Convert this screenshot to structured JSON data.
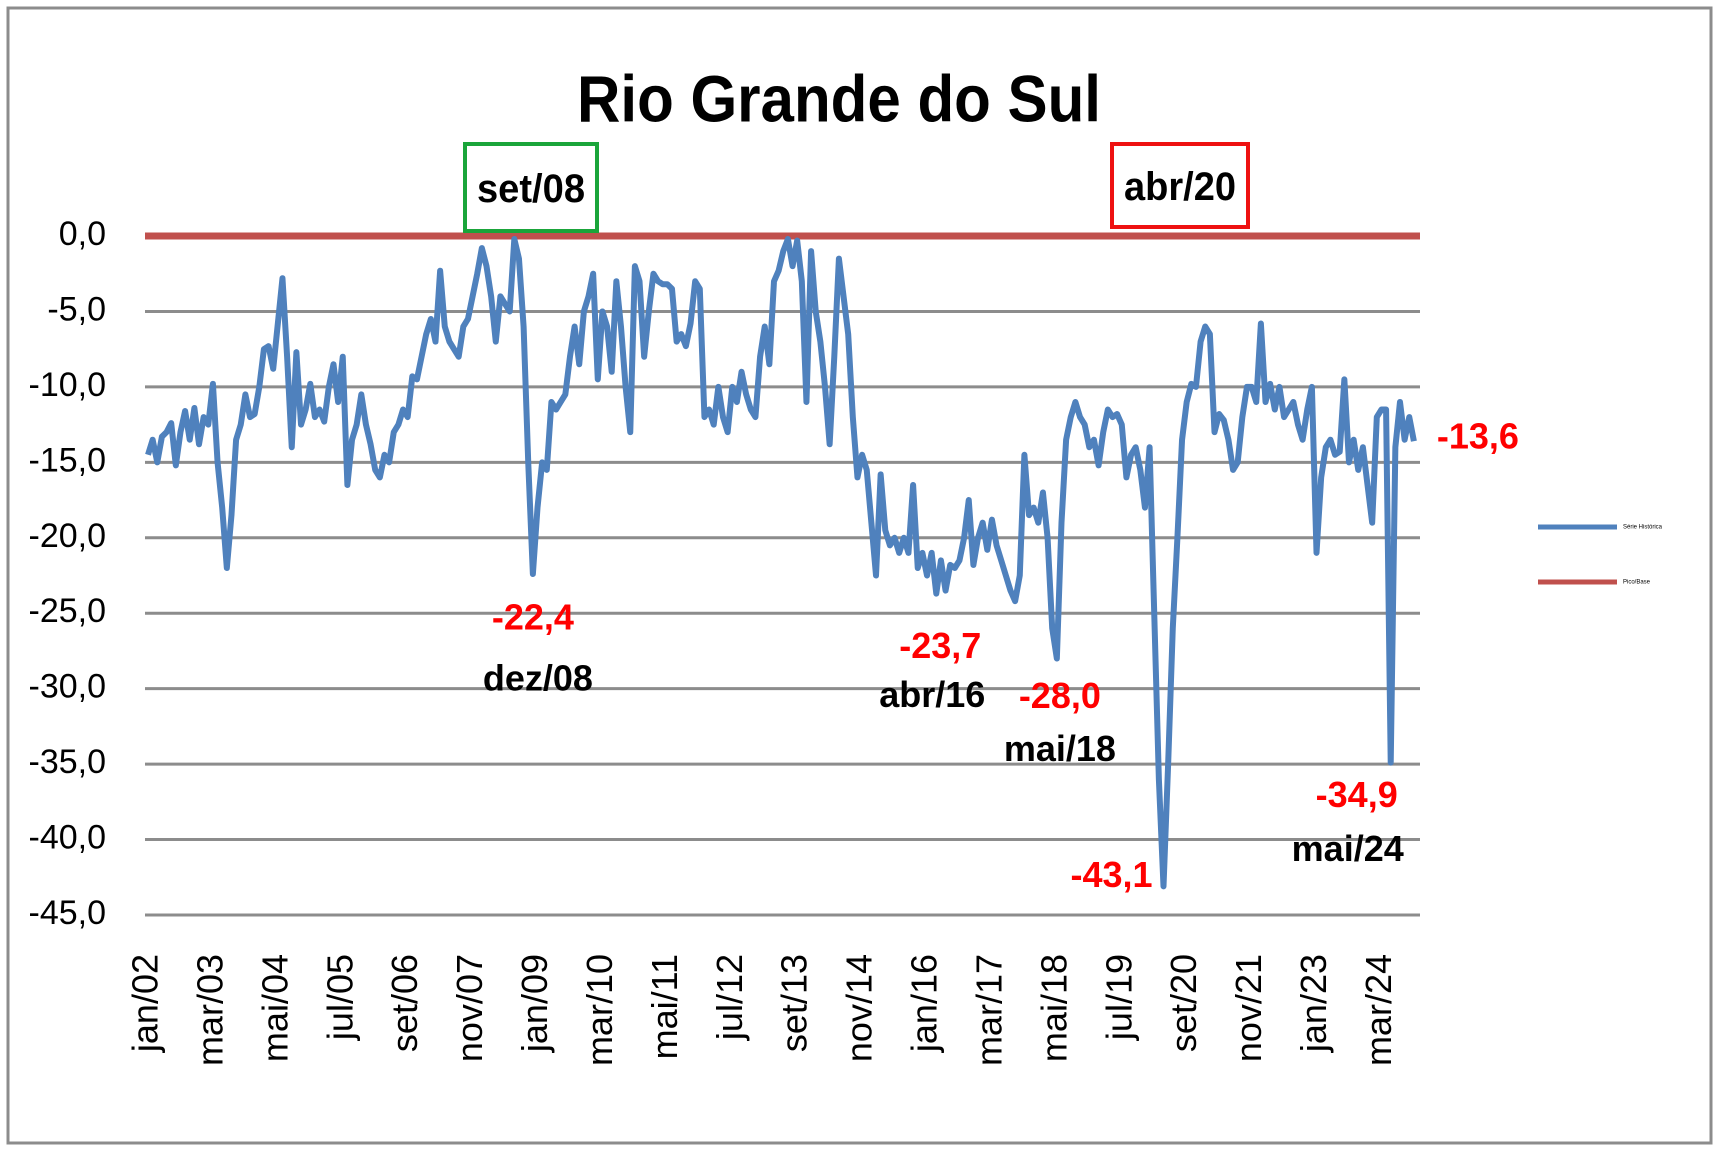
{
  "chart_data": {
    "type": "line",
    "title": "Rio Grande do Sul",
    "categories": [
      "jan/02",
      null,
      null,
      null,
      null,
      null,
      null,
      null,
      null,
      null,
      null,
      null,
      null,
      null,
      "mar/03",
      null,
      null,
      null,
      null,
      null,
      null,
      null,
      null,
      null,
      null,
      null,
      null,
      null,
      "mai/04",
      null,
      null,
      null,
      null,
      null,
      null,
      null,
      null,
      null,
      null,
      null,
      null,
      null,
      "jul/05",
      null,
      null,
      null,
      null,
      null,
      null,
      null,
      null,
      null,
      null,
      null,
      null,
      null,
      "set/06",
      null,
      null,
      null,
      null,
      null,
      null,
      null,
      null,
      null,
      null,
      null,
      null,
      null,
      "nov/07",
      null,
      null,
      null,
      null,
      null,
      null,
      null,
      null,
      null,
      null,
      null,
      null,
      null,
      "jan/09",
      null,
      null,
      null,
      null,
      null,
      null,
      null,
      null,
      null,
      null,
      null,
      null,
      null,
      "mar/10",
      null,
      null,
      null,
      null,
      null,
      null,
      null,
      null,
      null,
      null,
      null,
      null,
      null,
      "mai/11",
      null,
      null,
      null,
      null,
      null,
      null,
      null,
      null,
      null,
      null,
      null,
      null,
      null,
      "jul/12",
      null,
      null,
      null,
      null,
      null,
      null,
      null,
      null,
      null,
      null,
      null,
      null,
      null,
      "set/13",
      null,
      null,
      null,
      null,
      null,
      null,
      null,
      null,
      null,
      null,
      null,
      null,
      null,
      "nov/14",
      null,
      null,
      null,
      null,
      null,
      null,
      null,
      null,
      null,
      null,
      null,
      null,
      null,
      "jan/16",
      null,
      null,
      null,
      null,
      null,
      null,
      null,
      null,
      null,
      null,
      null,
      null,
      null,
      "mar/17",
      null,
      null,
      null,
      null,
      null,
      null,
      null,
      null,
      null,
      null,
      null,
      null,
      null,
      "mai/18",
      null,
      null,
      null,
      null,
      null,
      null,
      null,
      null,
      null,
      null,
      null,
      null,
      null,
      "jul/19",
      null,
      null,
      null,
      null,
      null,
      null,
      null,
      null,
      null,
      null,
      null,
      null,
      null,
      "set/20",
      null,
      null,
      null,
      null,
      null,
      null,
      null,
      null,
      null,
      null,
      null,
      null,
      null,
      "nov/21",
      null,
      null,
      null,
      null,
      null,
      null,
      null,
      null,
      null,
      null,
      null,
      null,
      null,
      "jan/23",
      null,
      null,
      null,
      null,
      null,
      null,
      null,
      null,
      null,
      null,
      null,
      null,
      null,
      "mar/24",
      null,
      null,
      null,
      null,
      null,
      null,
      null
    ],
    "series": [
      {
        "name": "Série Histórica",
        "color": "#4f81bd",
        "values": [
          -14.5,
          -13.5,
          -15,
          -13.3,
          -13,
          -12.4,
          -15.2,
          -13,
          -11.6,
          -13.5,
          -11.4,
          -13.8,
          -12,
          -12.5,
          -9.8,
          -15,
          -18,
          -22,
          -18.5,
          -13.5,
          -12.5,
          -10.5,
          -12,
          -11.8,
          -10,
          -7.5,
          -7.3,
          -8.8,
          -5.8,
          -2.8,
          -8,
          -14,
          -7.7,
          -12.5,
          -11.5,
          -9.8,
          -12,
          -11.5,
          -12.3,
          -10,
          -8.5,
          -11,
          -8,
          -16.5,
          -13.5,
          -12.5,
          -10.5,
          -12.5,
          -13.8,
          -15.5,
          -16,
          -14.5,
          -15,
          -13,
          -12.5,
          -11.5,
          -12,
          -9.3,
          -9.5,
          -8,
          -6.5,
          -5.5,
          -7,
          -2.3,
          -6,
          -7,
          -7.5,
          -8,
          -6,
          -5.5,
          -4,
          -2.5,
          -0.8,
          -2,
          -4,
          -7,
          -4,
          -4.5,
          -5,
          -0.2,
          -1.5,
          -6,
          -15,
          -22.4,
          -18,
          -15,
          -15.5,
          -11,
          -11.5,
          -11,
          -10.5,
          -8,
          -6,
          -8.5,
          -5,
          -4,
          -2.5,
          -9.5,
          -5,
          -6,
          -9,
          -3,
          -6,
          -10,
          -13,
          -2,
          -3,
          -8,
          -5,
          -2.5,
          -3,
          -3.2,
          -3.2,
          -3.5,
          -7,
          -6.5,
          -7.3,
          -5.8,
          -3,
          -3.5,
          -12,
          -11.5,
          -12.5,
          -10,
          -12,
          -13,
          -10,
          -11,
          -9,
          -10.5,
          -11.5,
          -12,
          -8,
          -6,
          -8.5,
          -3,
          -2.3,
          -1,
          -0.2,
          -2,
          -0.3,
          -3,
          -11,
          -1,
          -5,
          -7,
          -10,
          -13.8,
          -8,
          -1.5,
          -4,
          -6.5,
          -12,
          -16,
          -14.5,
          -15.5,
          -19,
          -22.5,
          -15.8,
          -19.5,
          -20.5,
          -20,
          -21,
          -20,
          -21,
          -16.5,
          -22,
          -21,
          -22.5,
          -21,
          -23.7,
          -21.5,
          -23.5,
          -21.8,
          -22,
          -21.5,
          -20,
          -17.5,
          -21.8,
          -20,
          -19,
          -20.8,
          -18.8,
          -20.5,
          -21.5,
          -22.5,
          -23.5,
          -24.2,
          -22.5,
          -14.5,
          -18.5,
          -18,
          -19,
          -17,
          -20,
          -26,
          -28,
          -19,
          -13.5,
          -12,
          -11,
          -12,
          -12.5,
          -14,
          -13.5,
          -15.2,
          -13,
          -11.5,
          -12,
          -11.8,
          -12.5,
          -16,
          -14.5,
          -14,
          -15.5,
          -18,
          -14,
          -25,
          -36,
          -43.1,
          -35,
          -26,
          -20,
          -13.5,
          -11,
          -9.8,
          -10,
          -7,
          -6,
          -6.5,
          -13,
          -11.8,
          -12.2,
          -13.5,
          -15.5,
          -15,
          -12,
          -10,
          -10,
          -11,
          -5.8,
          -11,
          -9.8,
          -11.5,
          -10,
          -12,
          -11.5,
          -11,
          -12.5,
          -13.5,
          -11.5,
          -10,
          -21,
          -16,
          -14,
          -13.5,
          -14.5,
          -14.3,
          -9.5,
          -15,
          -13.5,
          -15.5,
          -14,
          -16.5,
          -19,
          -12,
          -11.5,
          -11.5,
          -34.9,
          -14,
          -11,
          -13.5,
          -12,
          -13.6
        ]
      }
    ],
    "reference_lines": [
      {
        "name": "Pico/Base",
        "color": "#c0504d",
        "value": 0
      }
    ],
    "ylim": [
      -45,
      0
    ],
    "yticks": [
      {
        "value": 0,
        "label": "0,0"
      },
      {
        "value": -5,
        "label": "-5,0"
      },
      {
        "value": -10,
        "label": "-10,0"
      },
      {
        "value": -15,
        "label": "-15,0"
      },
      {
        "value": -20,
        "label": "-20,0"
      },
      {
        "value": -25,
        "label": "-25,0"
      },
      {
        "value": -30,
        "label": "-30,0"
      },
      {
        "value": -35,
        "label": "-35,0"
      },
      {
        "value": -40,
        "label": "-40,0"
      },
      {
        "value": -45,
        "label": "-45,0"
      }
    ],
    "grid": true,
    "legend": "right",
    "boxed_labels": [
      {
        "label": "set/08",
        "color": "#1aa53a"
      },
      {
        "label": "abr/20",
        "color": "#ee1111"
      }
    ],
    "annotations": [
      {
        "value": -22.4,
        "label": "-22,4",
        "date": "dez/08"
      },
      {
        "value": -23.7,
        "label": "-23,7",
        "date": "abr/16"
      },
      {
        "value": -28,
        "label": "-28,0",
        "date": "mai/18"
      },
      {
        "value": -43.1,
        "label": "-43,1"
      },
      {
        "value": -34.9,
        "label": "-34,9",
        "date": "mai/24"
      },
      {
        "value": -13.6,
        "label": "-13,6"
      }
    ]
  }
}
